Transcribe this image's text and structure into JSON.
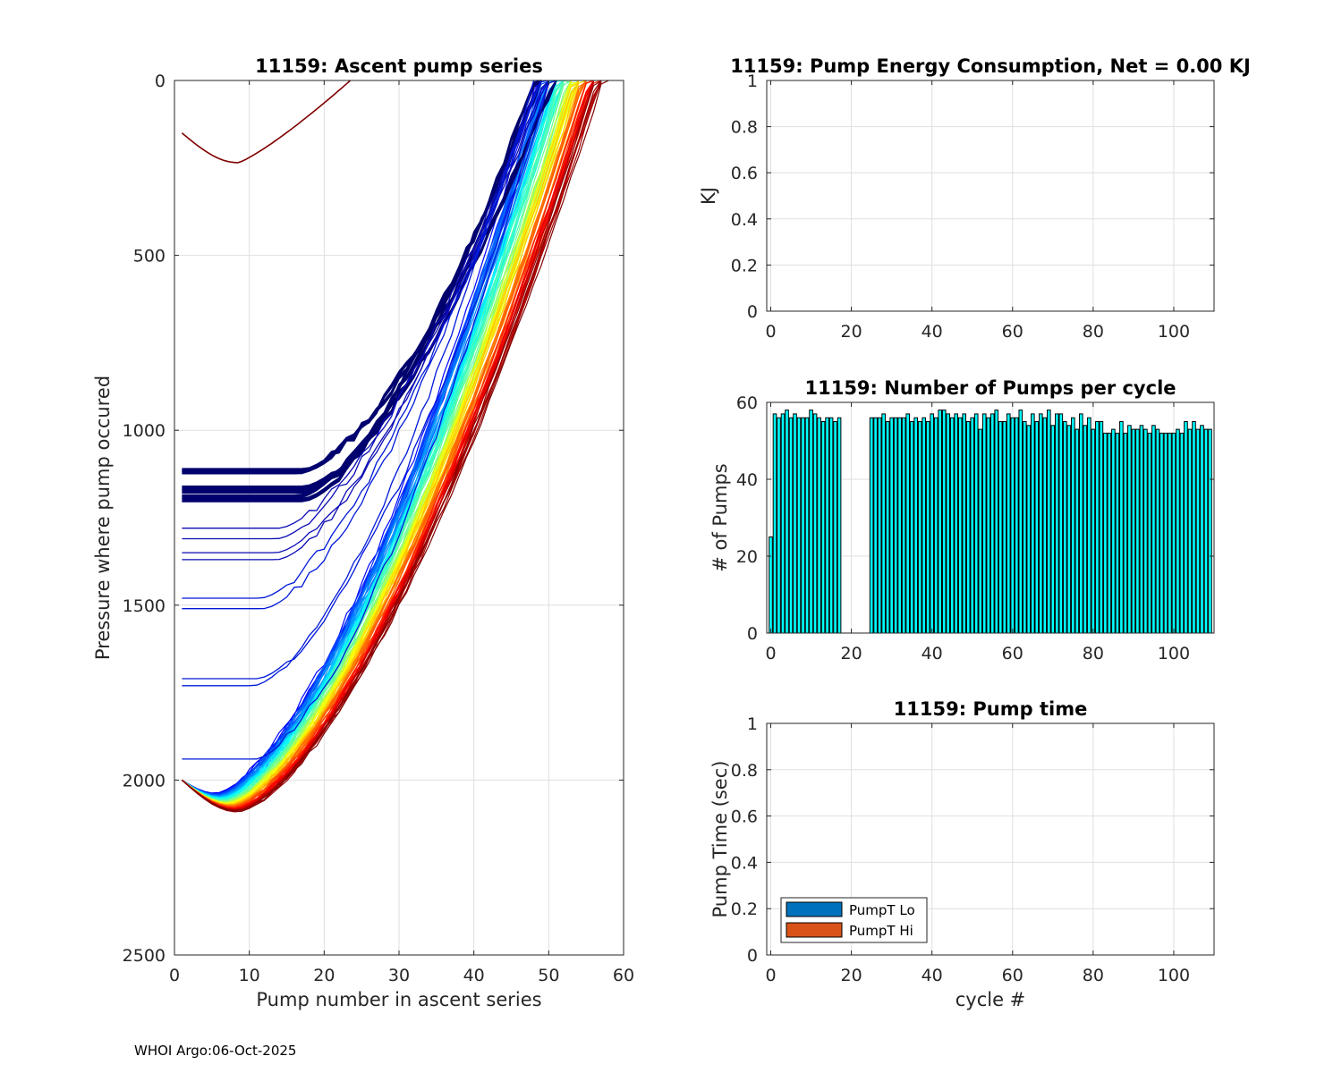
{
  "footer": "WHOI Argo:06-Oct-2025",
  "chart_data": [
    {
      "id": "ascent",
      "type": "line",
      "title": "11159: Ascent pump series",
      "xlabel": "Pump number in ascent series",
      "ylabel": "Pressure where pump occured",
      "xlim": [
        0,
        60
      ],
      "ylim": [
        0,
        2500
      ],
      "y_reversed": true,
      "xticks": [
        0,
        10,
        20,
        30,
        40,
        50,
        60
      ],
      "yticks": [
        0,
        500,
        1000,
        1500,
        2000,
        2500
      ],
      "grid": true,
      "colormap": "jet",
      "series_count": 108,
      "series_groups": [
        {
          "name": "early cycle (top)",
          "start_pressure": 150,
          "min_at_pump": 8.5,
          "max_pressure": 235,
          "surface_at_pump": 23.5
        },
        {
          "name": "park-depth profiles",
          "start_pressures": [
            1110,
            1115,
            1160,
            1170,
            1185,
            1195,
            1280,
            1310,
            1350,
            1370,
            1480,
            1510,
            1710,
            1730,
            1940
          ]
        },
        {
          "name": "deep profiles",
          "start_pressure": 2000,
          "max_pressure_range": [
            2040,
            2090
          ],
          "surface_at_pump_range": [
            49,
            57
          ]
        }
      ]
    },
    {
      "id": "energy",
      "type": "bar",
      "title": "11159: Pump Energy Consumption,  Net =   0.00 KJ",
      "xlabel": "",
      "ylabel": "KJ",
      "xlim": [
        -1,
        110
      ],
      "ylim": [
        0,
        1
      ],
      "xticks": [
        0,
        20,
        40,
        60,
        80,
        100
      ],
      "yticks": [
        0,
        0.2,
        0.4,
        0.6,
        0.8,
        1
      ],
      "ytick_labels": [
        "0",
        "0.2",
        "0.4",
        "0.6",
        "0.8",
        "1"
      ],
      "grid": true,
      "values": []
    },
    {
      "id": "pumps",
      "type": "bar",
      "title": "11159: Number of Pumps per cycle",
      "xlabel": "",
      "ylabel": "# of Pumps",
      "xlim": [
        -1,
        110
      ],
      "ylim": [
        0,
        60
      ],
      "xticks": [
        0,
        20,
        40,
        60,
        80,
        100
      ],
      "yticks": [
        0,
        20,
        40,
        60
      ],
      "grid": true,
      "bar_color": "#00ffff",
      "cycles": [
        0,
        1,
        2,
        3,
        4,
        5,
        6,
        7,
        8,
        9,
        10,
        11,
        12,
        13,
        14,
        15,
        16,
        17,
        25,
        26,
        27,
        28,
        29,
        30,
        31,
        32,
        33,
        34,
        35,
        36,
        37,
        38,
        39,
        40,
        41,
        42,
        43,
        44,
        45,
        46,
        47,
        48,
        49,
        50,
        51,
        52,
        53,
        54,
        55,
        56,
        57,
        58,
        59,
        60,
        61,
        62,
        63,
        64,
        65,
        66,
        67,
        68,
        69,
        70,
        71,
        72,
        73,
        74,
        75,
        76,
        77,
        78,
        79,
        80,
        81,
        82,
        83,
        84,
        85,
        86,
        87,
        88,
        89,
        90,
        91,
        92,
        93,
        94,
        95,
        96,
        97,
        98,
        99,
        100,
        101,
        102,
        103,
        104,
        105,
        106,
        107,
        108,
        109
      ],
      "values": [
        25,
        57,
        56,
        57,
        58,
        56,
        57,
        56,
        56,
        56,
        58,
        57,
        56,
        55,
        56,
        56,
        55,
        56,
        56,
        56,
        56,
        57,
        55,
        56,
        56,
        56,
        56,
        57,
        55,
        56,
        55,
        56,
        55,
        57,
        56,
        58,
        58,
        57,
        56,
        57,
        56,
        57,
        55,
        56,
        57,
        53,
        57,
        56,
        57,
        58,
        55,
        55,
        57,
        56,
        56,
        58,
        55,
        54,
        57,
        55,
        57,
        56,
        58,
        54,
        57,
        57,
        55,
        54,
        56,
        53,
        57,
        54,
        56,
        53,
        55,
        55,
        52,
        52,
        53,
        52,
        55,
        52,
        54,
        53,
        53,
        54,
        53,
        52,
        54,
        53,
        52,
        52,
        52,
        52,
        53,
        52,
        55,
        53,
        55,
        53,
        54,
        53,
        53
      ]
    },
    {
      "id": "pumptime",
      "type": "bar",
      "title": "11159: Pump time",
      "xlabel": "cycle #",
      "ylabel": "Pump Time (sec)",
      "xlim": [
        -1,
        110
      ],
      "ylim": [
        0,
        1
      ],
      "xticks": [
        0,
        20,
        40,
        60,
        80,
        100
      ],
      "yticks": [
        0,
        0.2,
        0.4,
        0.6,
        0.8,
        1
      ],
      "ytick_labels": [
        "0",
        "0.2",
        "0.4",
        "0.6",
        "0.8",
        "1"
      ],
      "grid": true,
      "legend": {
        "position": "bottom-left",
        "entries": [
          {
            "label": "PumpT Lo",
            "color": "#0072bd"
          },
          {
            "label": "PumpT Hi",
            "color": "#d95319"
          }
        ]
      },
      "series": []
    }
  ]
}
